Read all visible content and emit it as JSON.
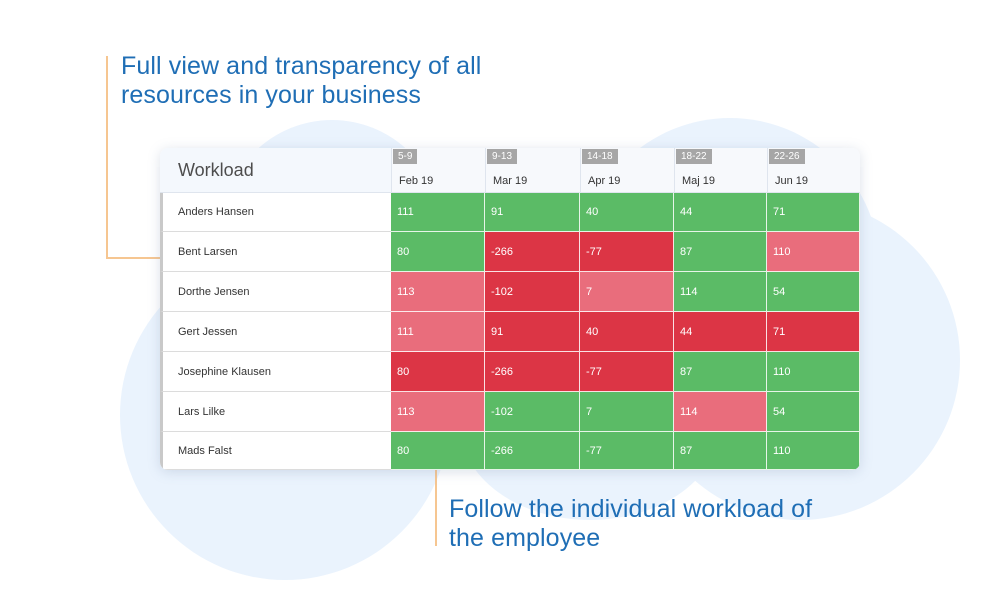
{
  "callouts": {
    "top": "Full view and transparency of all resources in your business",
    "bottom": "Follow the individual workload of the employee"
  },
  "colors": {
    "green": "#5bbb66",
    "red": "#dc3545",
    "light_red": "#e96d7c",
    "accent_text": "#1f6eb5",
    "callout_line": "#f6c691"
  },
  "table": {
    "title": "Workload",
    "columns": [
      {
        "week": "5-9",
        "month": "Feb 19"
      },
      {
        "week": "9-13",
        "month": "Mar 19"
      },
      {
        "week": "14-18",
        "month": "Apr 19"
      },
      {
        "week": "18-22",
        "month": "Maj 19"
      },
      {
        "week": "22-26",
        "month": "Jun 19"
      }
    ],
    "rows": [
      {
        "name": "Anders Hansen",
        "cells": [
          {
            "value": "111",
            "status": "green"
          },
          {
            "value": "91",
            "status": "green"
          },
          {
            "value": "40",
            "status": "green"
          },
          {
            "value": "44",
            "status": "green"
          },
          {
            "value": "71",
            "status": "green"
          }
        ]
      },
      {
        "name": "Bent Larsen",
        "cells": [
          {
            "value": "80",
            "status": "green"
          },
          {
            "value": "-266",
            "status": "red"
          },
          {
            "value": "-77",
            "status": "red"
          },
          {
            "value": "87",
            "status": "green"
          },
          {
            "value": "110",
            "status": "light_red"
          }
        ]
      },
      {
        "name": "Dorthe Jensen",
        "cells": [
          {
            "value": "113",
            "status": "light_red"
          },
          {
            "value": "-102",
            "status": "red"
          },
          {
            "value": "7",
            "status": "light_red"
          },
          {
            "value": "114",
            "status": "green"
          },
          {
            "value": "54",
            "status": "green"
          }
        ]
      },
      {
        "name": "Gert Jessen",
        "cells": [
          {
            "value": "111",
            "status": "light_red"
          },
          {
            "value": "91",
            "status": "red"
          },
          {
            "value": "40",
            "status": "red"
          },
          {
            "value": "44",
            "status": "red"
          },
          {
            "value": "71",
            "status": "red"
          }
        ]
      },
      {
        "name": "Josephine Klausen",
        "cells": [
          {
            "value": "80",
            "status": "red"
          },
          {
            "value": "-266",
            "status": "red"
          },
          {
            "value": "-77",
            "status": "red"
          },
          {
            "value": "87",
            "status": "green"
          },
          {
            "value": "110",
            "status": "green"
          }
        ]
      },
      {
        "name": "Lars Lilke",
        "cells": [
          {
            "value": "113",
            "status": "light_red"
          },
          {
            "value": "-102",
            "status": "green"
          },
          {
            "value": "7",
            "status": "green"
          },
          {
            "value": "114",
            "status": "light_red"
          },
          {
            "value": "54",
            "status": "green"
          }
        ]
      },
      {
        "name": "Mads Falst",
        "cells": [
          {
            "value": "80",
            "status": "green"
          },
          {
            "value": "-266",
            "status": "green"
          },
          {
            "value": "-77",
            "status": "green"
          },
          {
            "value": "87",
            "status": "green"
          },
          {
            "value": "110",
            "status": "green"
          }
        ]
      }
    ]
  }
}
